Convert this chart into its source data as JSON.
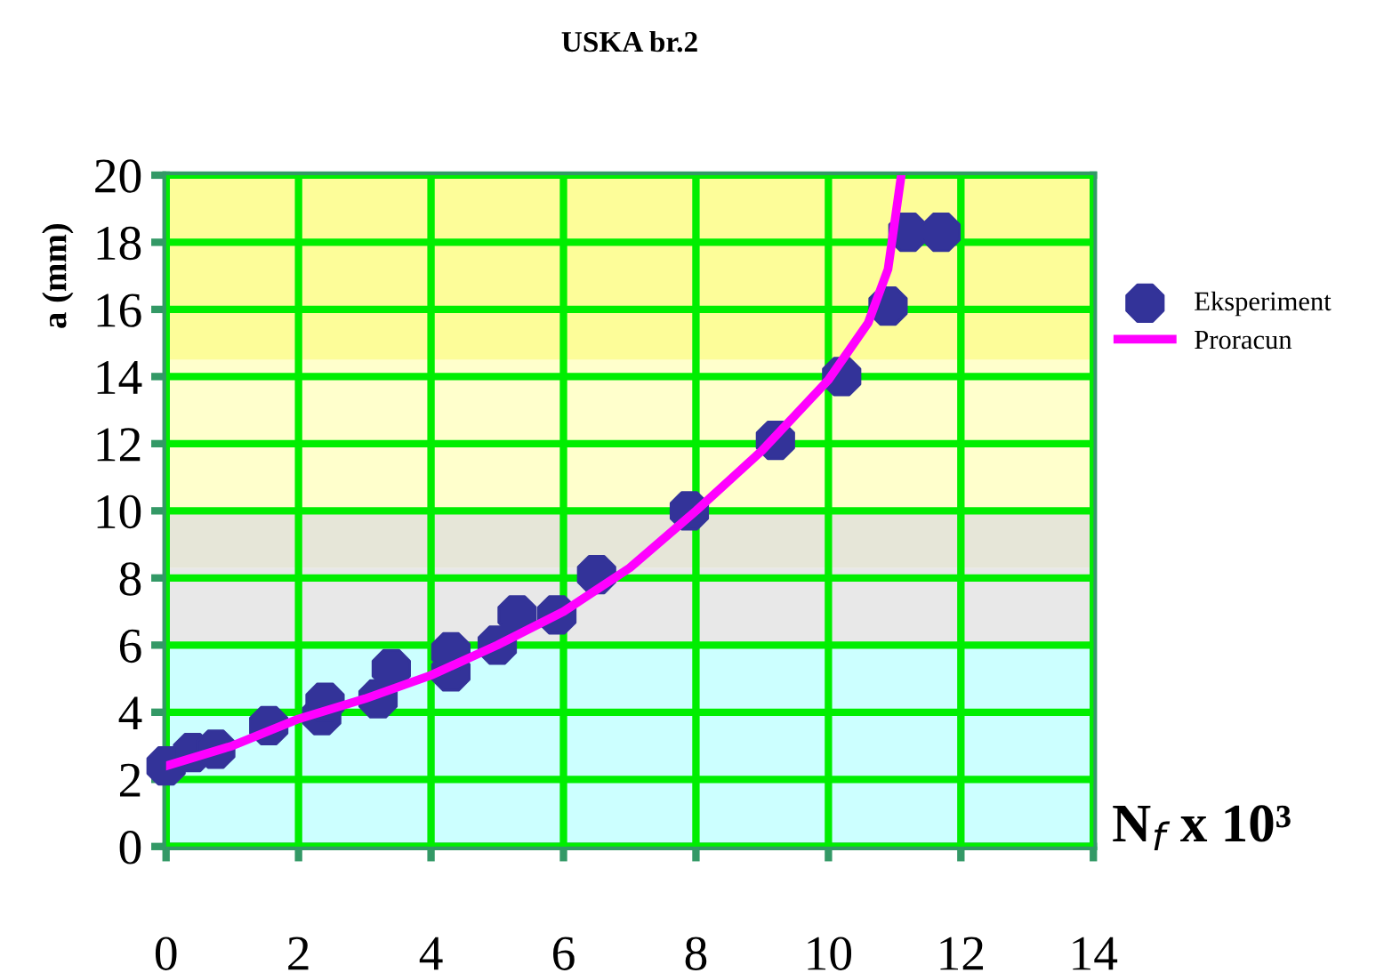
{
  "chart_data": {
    "type": "scatter",
    "title": "USKA br.2",
    "xlabel": "N$_{f}$ x 10³",
    "ylabel": "a (mm)",
    "xlim": [
      0,
      14
    ],
    "xticks": [
      0,
      2,
      4,
      6,
      8,
      10,
      12,
      14
    ],
    "ylim": [
      0,
      20
    ],
    "yticks": [
      0,
      2,
      4,
      6,
      8,
      10,
      12,
      14,
      16,
      18,
      20
    ],
    "grid": true,
    "legend": "right",
    "bands": [
      {
        "axis": "y",
        "from": 0,
        "to": 6,
        "color": "#ccffff"
      },
      {
        "axis": "y",
        "from": 6,
        "to": 8.3,
        "color": "#e8e8e8"
      },
      {
        "axis": "y",
        "from": 8.3,
        "to": 10,
        "color": "#e6e6d8"
      },
      {
        "axis": "y",
        "from": 10,
        "to": 14.5,
        "color": "#ffffcc"
      },
      {
        "axis": "y",
        "from": 14.5,
        "to": 20,
        "color": "#fdfd99"
      }
    ],
    "series": [
      {
        "name": "Eksperiment",
        "marker": "circle",
        "color": "#333399",
        "x": [
          0,
          0.4,
          0.75,
          1.55,
          2.35,
          2.4,
          3.2,
          3.4,
          4.3,
          4.3,
          5.0,
          5.3,
          5.9,
          6.5,
          7.9,
          9.2,
          10.2,
          10.9,
          11.2,
          11.7
        ],
        "values": [
          2.4,
          2.8,
          2.9,
          3.6,
          3.9,
          4.3,
          4.4,
          5.3,
          5.2,
          5.8,
          6.0,
          6.9,
          6.9,
          8.1,
          10.0,
          12.1,
          14.0,
          16.1,
          18.3,
          18.3
        ]
      },
      {
        "name": "Proracun",
        "type": "line",
        "marker": "none",
        "color": "#ff00ff",
        "x": [
          0,
          1,
          2,
          3,
          4,
          5,
          6,
          7,
          8,
          9,
          10,
          10.6,
          10.9,
          11.1
        ],
        "values": [
          2.4,
          3.0,
          3.8,
          4.4,
          5.1,
          6.0,
          7.0,
          8.3,
          10.0,
          11.8,
          13.9,
          15.6,
          17.2,
          20
        ]
      }
    ]
  }
}
